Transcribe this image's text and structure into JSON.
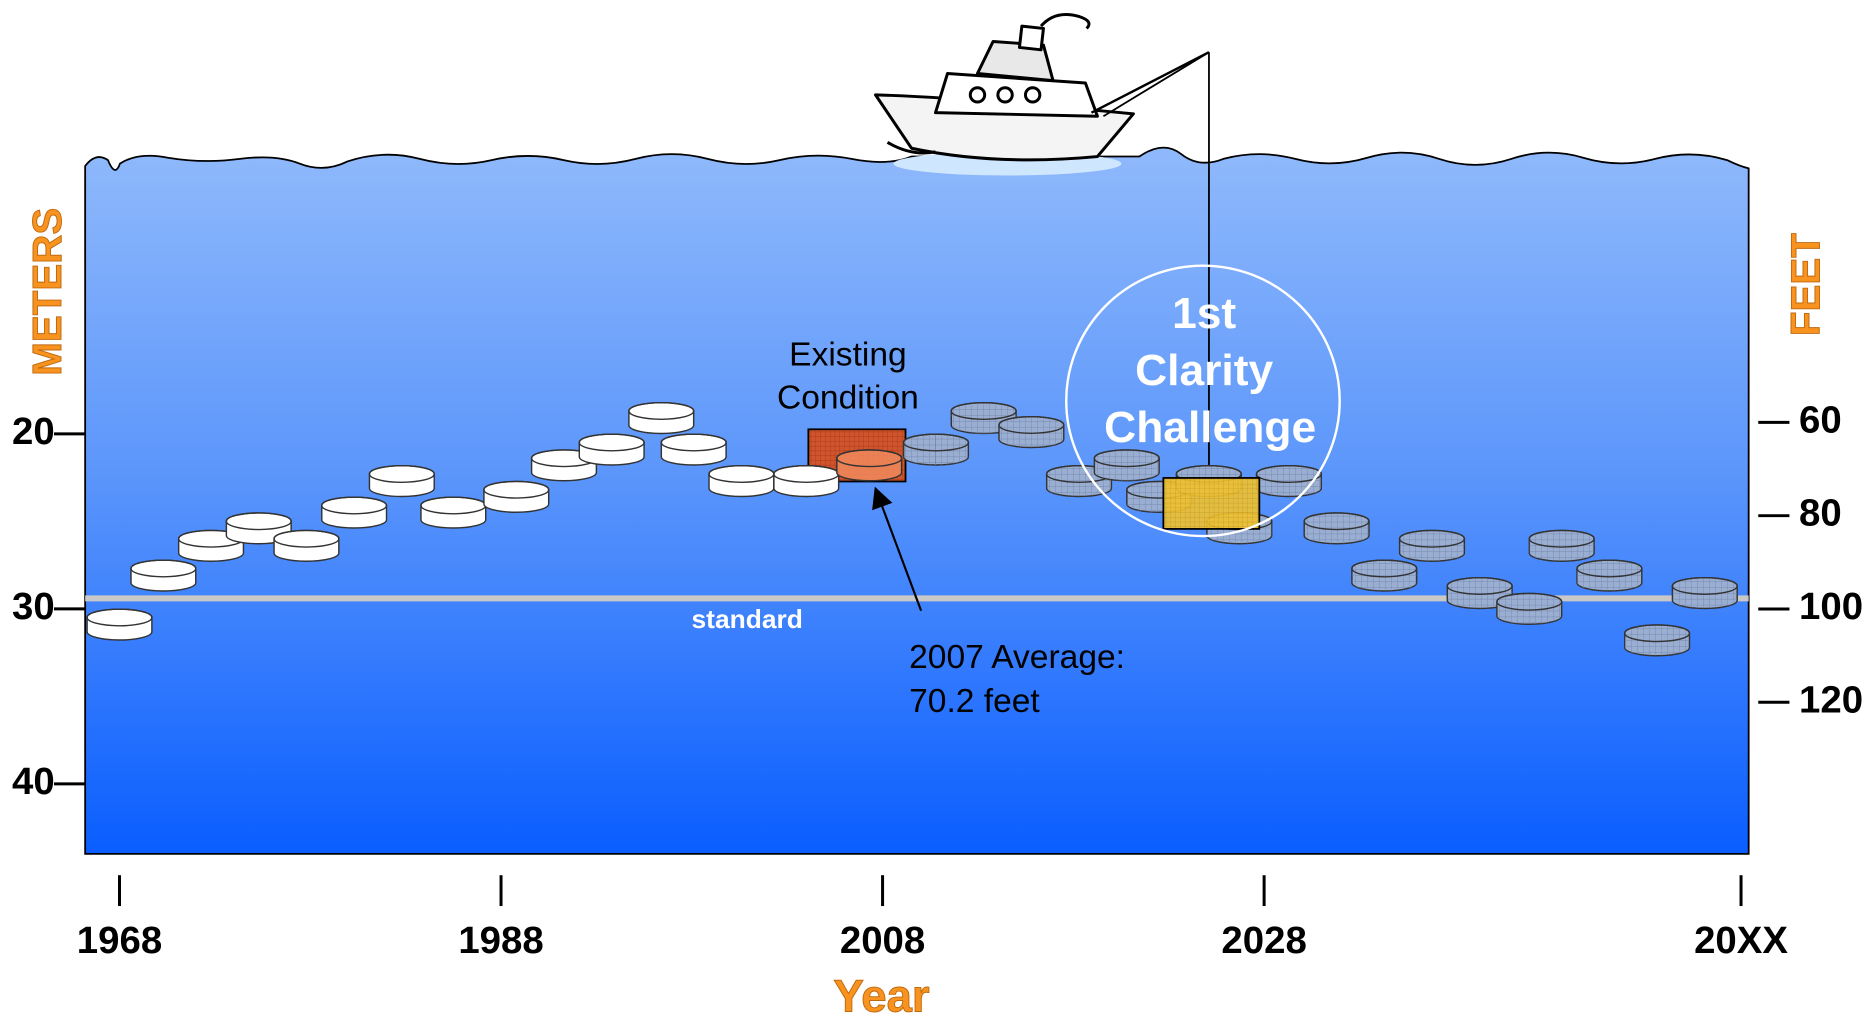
{
  "chart_data": {
    "type": "scatter",
    "y_label": "METERS",
    "y2_label": "FEET",
    "x_label": "Year",
    "xlim": [
      1966.2,
      2053.4
    ],
    "xticks": [
      1968,
      1988,
      2008,
      2028,
      {
        "value": 2053,
        "label": "20XX"
      }
    ],
    "ylim": [
      44.0,
      4.9
    ],
    "yticks": [
      20,
      30,
      40
    ],
    "y2lim": [
      152.5,
      5.8
    ],
    "y2ticks": [
      60,
      80,
      100,
      120
    ],
    "standard_line": {
      "label": "standard",
      "value": 29.4
    },
    "annotations": {
      "existing": [
        "Existing",
        "Condition"
      ],
      "average": [
        "2007 Average:",
        "70.2 feet"
      ],
      "challenge": [
        "1st",
        "Clarity",
        "Challenge"
      ]
    },
    "series": [
      {
        "color": "#ffffff",
        "x": [
          1968,
          1970.3,
          1972.8,
          1975.3,
          1977.8,
          1980.3,
          1982.8,
          1985.5,
          1988.8,
          1991.3,
          1993.8,
          1996.4,
          1998.1,
          2000.6,
          2004.0
        ],
        "values": [
          30.9,
          28.1,
          26.4,
          25.4,
          26.4,
          24.5,
          22.7,
          24.5,
          23.6,
          21.8,
          20.9,
          19.1,
          20.9,
          22.7,
          22.7
        ]
      },
      {
        "color": "#f08a5d",
        "x": [
          2007.3
        ],
        "values": [
          21.8
        ]
      },
      {
        "color": "#9aaed2",
        "x": [
          2010.8,
          2013.3,
          2015.8,
          2018.3,
          2020.8,
          2022.5,
          2025.1,
          2026.7,
          2029.3,
          2031.8,
          2034.3,
          2036.8,
          2039.3,
          2041.9,
          2043.6,
          2046.1,
          2048.6,
          2051.1
        ],
        "values": [
          20.9,
          19.1,
          19.9,
          22.7,
          21.8,
          23.6,
          22.7,
          25.4,
          22.7,
          25.4,
          28.1,
          26.4,
          29.1,
          30.0,
          26.4,
          28.1,
          31.8,
          29.1
        ]
      }
    ]
  }
}
